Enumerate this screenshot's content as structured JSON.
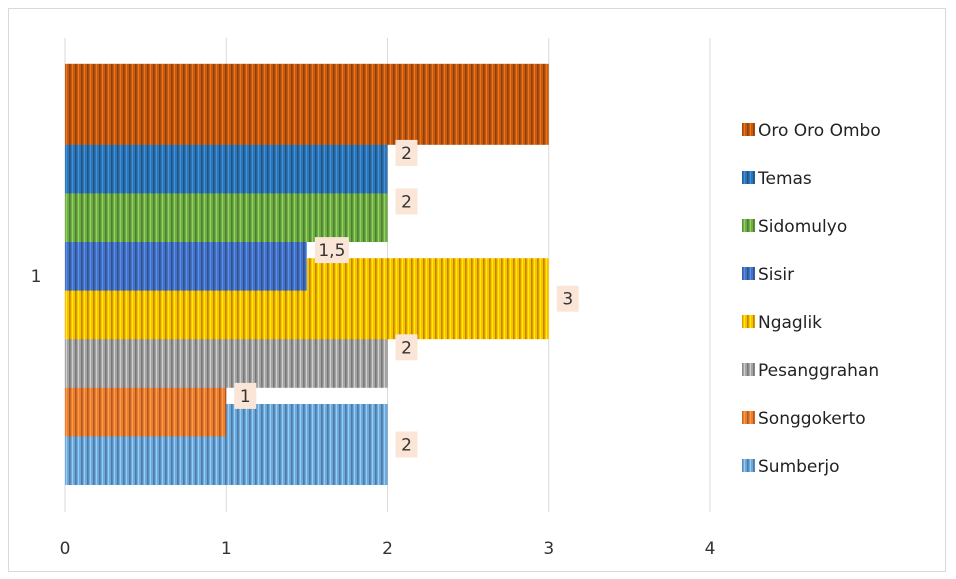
{
  "chart_data": {
    "type": "bar",
    "orientation": "horizontal",
    "categories": [
      "1"
    ],
    "xlim": [
      0,
      4
    ],
    "x_ticks": [
      "0",
      "1",
      "2",
      "3",
      "4"
    ],
    "grid": "vertical",
    "legend_position": "right",
    "series": [
      {
        "name": "Sumberjo",
        "values": [
          2
        ],
        "color": "#6fa8dc",
        "data_label": "2"
      },
      {
        "name": "Songgokerto",
        "values": [
          1
        ],
        "color": "#ed7d31",
        "data_label": "1"
      },
      {
        "name": "Pesanggrahan",
        "values": [
          2
        ],
        "color": "#a5a5a5",
        "data_label": "2"
      },
      {
        "name": "Ngaglik",
        "values": [
          3
        ],
        "color": "#ffc000",
        "data_label": "3"
      },
      {
        "name": "Sisir",
        "values": [
          1.5
        ],
        "color": "#4472c4",
        "data_label": "1,5"
      },
      {
        "name": "Sidomulyo",
        "values": [
          2
        ],
        "color": "#70ad47",
        "data_label": "2"
      },
      {
        "name": "Temas",
        "values": [
          2
        ],
        "color": "#2e75b6",
        "data_label": "2"
      },
      {
        "name": "Oro Oro Ombo",
        "values": [
          3
        ],
        "color": "#c55a11",
        "data_label": ""
      }
    ],
    "legend_order": [
      "Oro Oro Ombo",
      "Temas",
      "Sidomulyo",
      "Sisir",
      "Ngaglik",
      "Pesanggrahan",
      "Songgokerto",
      "Sumberjo"
    ]
  }
}
